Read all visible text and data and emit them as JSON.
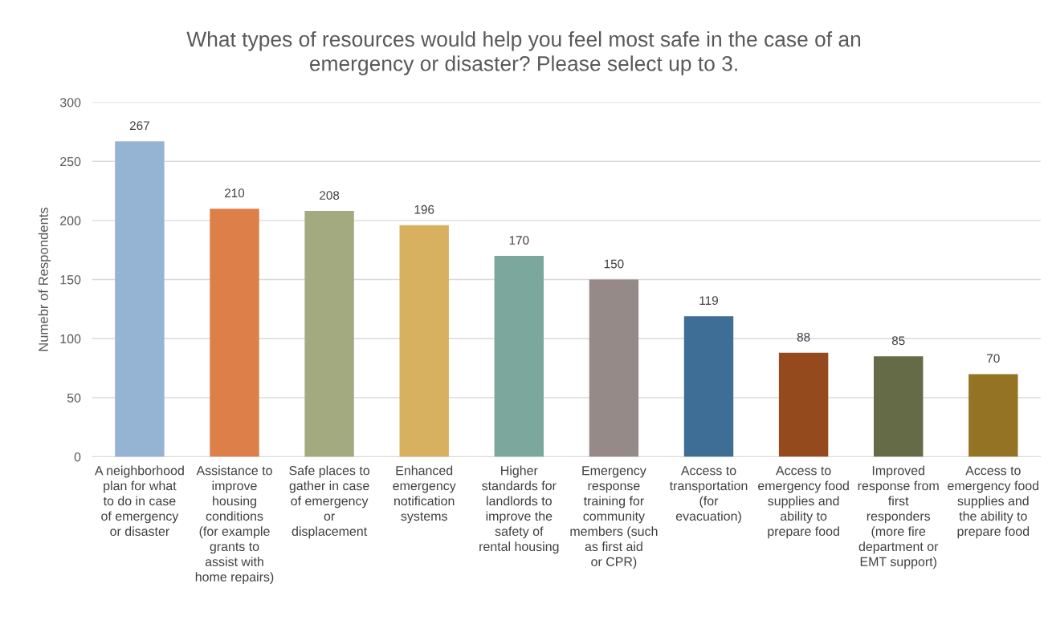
{
  "chart_data": {
    "type": "bar",
    "title": "What types of resources would help you feel most safe in the case of an emergency or disaster? Please select up to 3.",
    "ylabel": "Numebr of Respondents",
    "categories": [
      "A neighborhood plan for what to do in case of emergency or disaster",
      "Assistance to improve housing conditions (for example grants to assist with home repairs)",
      "Safe places to gather in case of emergency or displacement",
      "Enhanced emergency notification systems",
      "Higher standards for landlords to improve the safety of rental housing",
      "Emergency response training for community members (such as first aid or CPR)",
      "Access to transportation (for evacuation)",
      "Access to emergency food supplies and ability to prepare food",
      "Improved response from first responders (more fire department or EMT support)",
      "Access to emergency food supplies and the ability to prepare food"
    ],
    "values": [
      267,
      210,
      208,
      196,
      170,
      150,
      119,
      88,
      85,
      70
    ],
    "colors": [
      "#95b3d3",
      "#dd7f48",
      "#a3aa7f",
      "#d8b160",
      "#7ba79c",
      "#968a89",
      "#3e6d96",
      "#944a1c",
      "#646b46",
      "#947325"
    ],
    "ylim": [
      0,
      300
    ],
    "yticks": [
      0,
      50,
      100,
      150,
      200,
      250,
      300
    ],
    "grid": "y",
    "data_labels": true,
    "legend": false
  }
}
